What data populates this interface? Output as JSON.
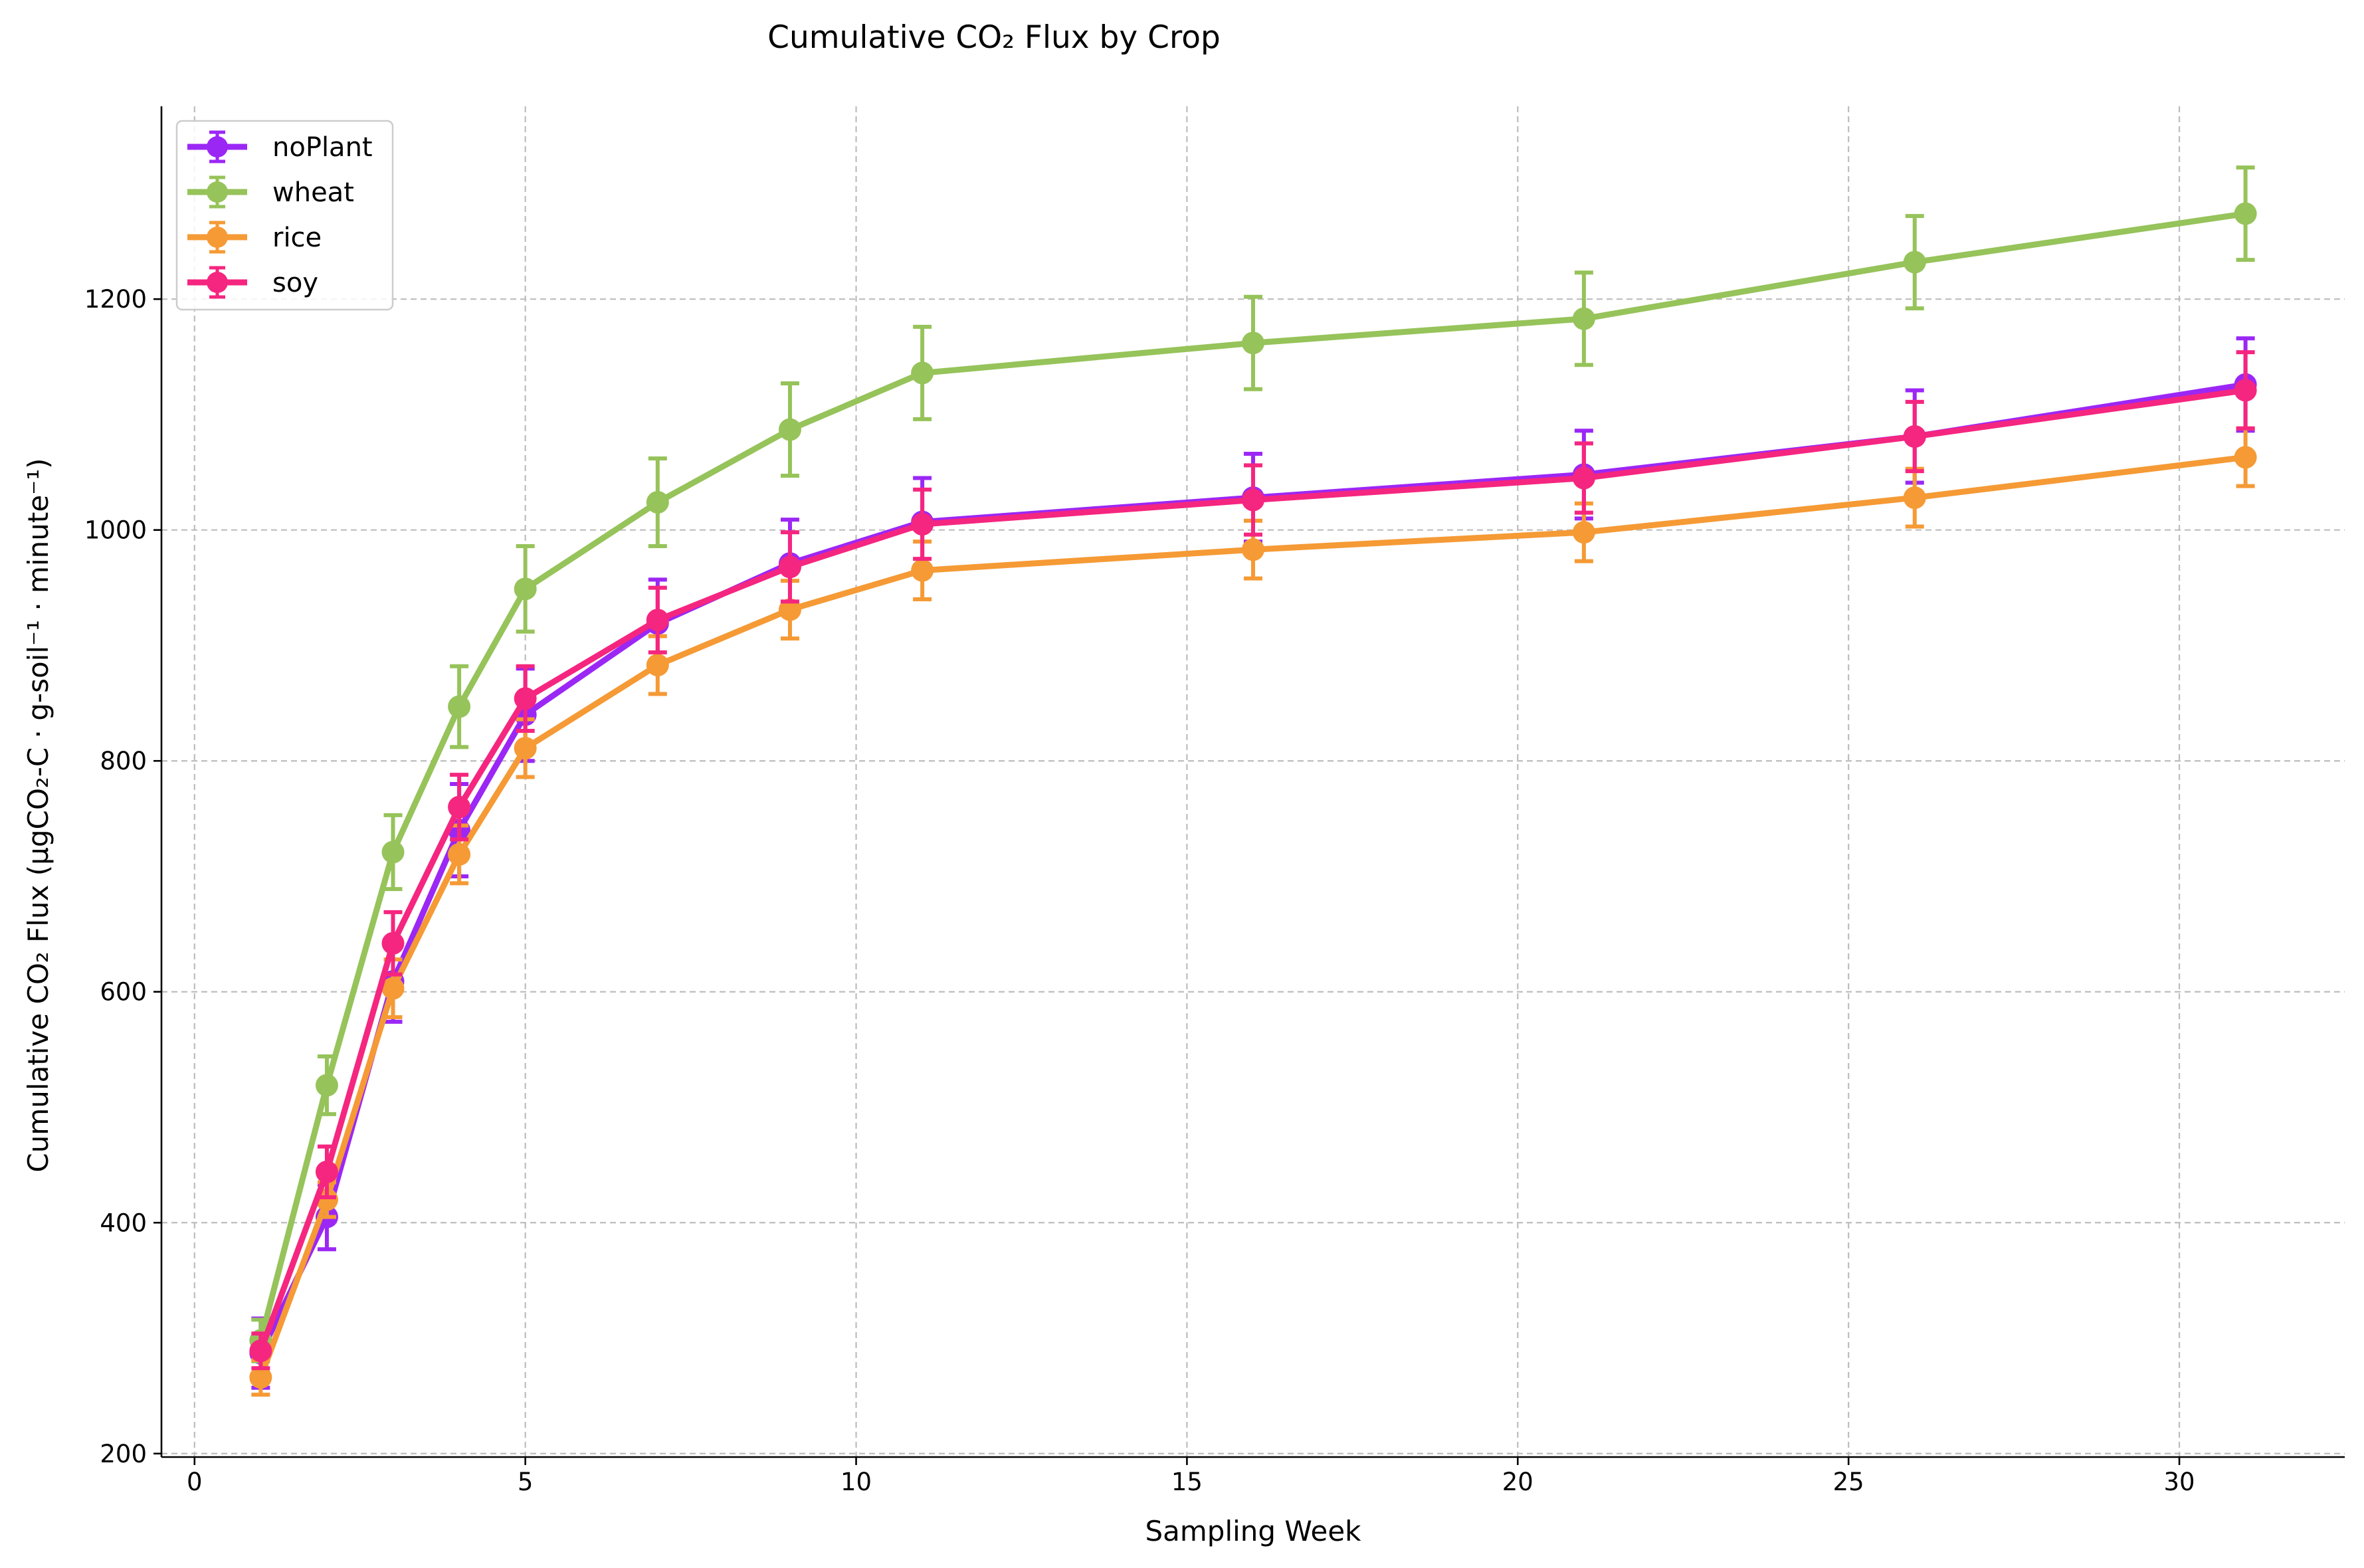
{
  "chart_data": {
    "type": "line",
    "title": "Cumulative CO₂ Flux by Crop",
    "xlabel": "Sampling Week",
    "ylabel": "Cumulative CO₂ Flux (μgCO₂-C · g-soil⁻¹ · minute⁻¹)",
    "xlim": [
      -0.5,
      32.5
    ],
    "ylim": [
      197,
      1367
    ],
    "xticks": [
      0,
      5,
      10,
      15,
      20,
      25,
      30
    ],
    "yticks": [
      200,
      400,
      600,
      800,
      1000,
      1200
    ],
    "grid": true,
    "legend_position": "upper-left",
    "x": [
      1,
      2,
      3,
      4,
      5,
      7,
      9,
      11,
      16,
      21,
      26,
      31
    ],
    "series": [
      {
        "name": "noPlant",
        "color": "#9b27f5",
        "values": [
          287,
          405,
          609,
          740,
          840,
          919,
          971,
          1007,
          1028,
          1048,
          1081,
          1126
        ],
        "errors": [
          30,
          28,
          35,
          40,
          40,
          38,
          38,
          38,
          38,
          38,
          40,
          40
        ]
      },
      {
        "name": "wheat",
        "color": "#96c35a",
        "values": [
          298,
          519,
          721,
          847,
          949,
          1024,
          1087,
          1136,
          1162,
          1183,
          1232,
          1274
        ],
        "errors": [
          18,
          25,
          32,
          35,
          37,
          38,
          40,
          40,
          40,
          40,
          40,
          40
        ]
      },
      {
        "name": "rice",
        "color": "#f59a35",
        "values": [
          266,
          420,
          603,
          719,
          811,
          883,
          931,
          965,
          983,
          998,
          1028,
          1063
        ],
        "errors": [
          15,
          15,
          25,
          25,
          25,
          25,
          25,
          25,
          25,
          25,
          25,
          25
        ]
      },
      {
        "name": "soy",
        "color": "#f5267f",
        "values": [
          289,
          444,
          642,
          760,
          854,
          922,
          968,
          1005,
          1026,
          1045,
          1081,
          1121
        ],
        "errors": [
          15,
          22,
          27,
          28,
          28,
          28,
          30,
          30,
          30,
          30,
          30,
          33
        ]
      }
    ]
  }
}
